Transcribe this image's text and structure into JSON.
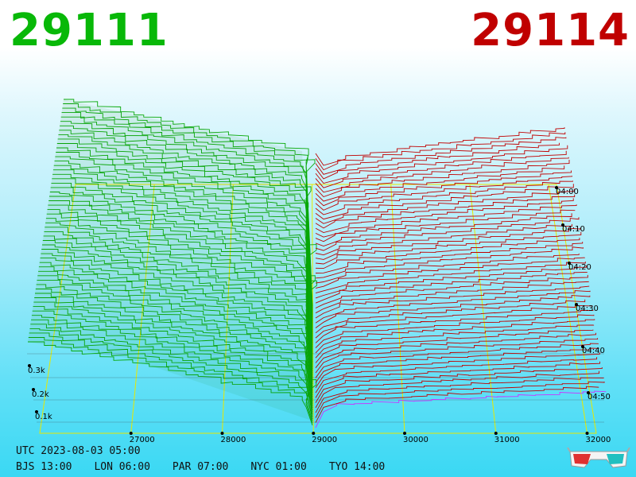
{
  "header": {
    "left_price": "29111",
    "right_price": "29114",
    "left_color": "#08b808",
    "right_color": "#c00000"
  },
  "footer": {
    "utc": "UTC 2023-08-03 05:00",
    "zones": [
      "BJS 13:00",
      "LON 06:00",
      "PAR 07:00",
      "NYC 01:00",
      "TYO 14:00"
    ]
  },
  "icon": "3d-glasses-icon",
  "chart_data": {
    "type": "area",
    "projection": "3d-perspective",
    "xaxis": {
      "ticks": [
        "27000",
        "28000",
        "29000",
        "30000",
        "31000",
        "32000"
      ],
      "range": [
        26000,
        32100
      ]
    },
    "zaxis": {
      "ticks": [
        "0.1k",
        "0.2k",
        "0.3k"
      ]
    },
    "time_axis": {
      "ticks": [
        "04:00",
        "04:10",
        "04:20",
        "04:30",
        "04:40",
        "04:50"
      ]
    },
    "series": [
      {
        "side": "bid",
        "color": "#08a808"
      },
      {
        "side": "ask",
        "color": "#c00000"
      }
    ],
    "grid": true,
    "grid_color": "#e8e800",
    "highlight_color": "#cc33ff"
  }
}
